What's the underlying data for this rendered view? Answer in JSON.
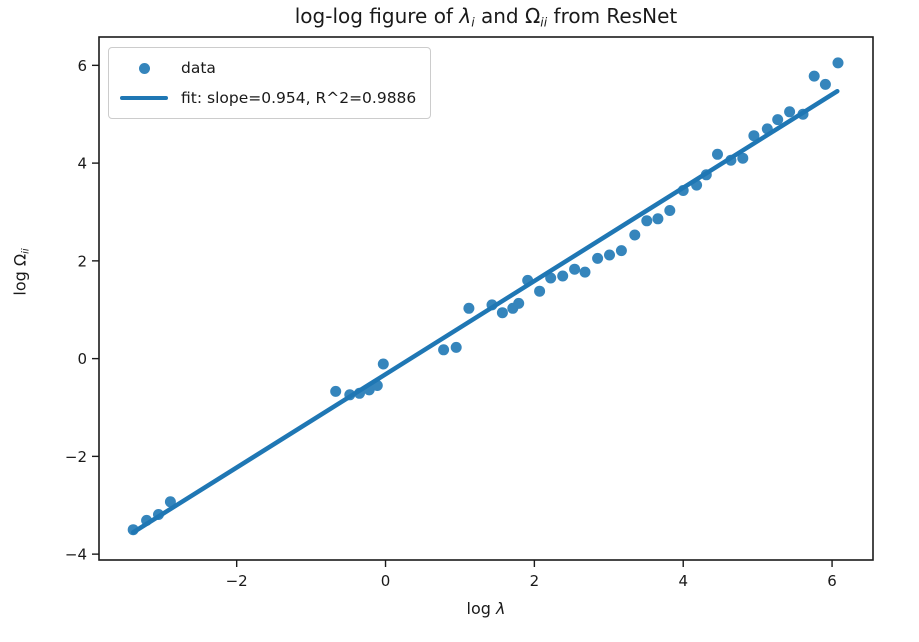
{
  "figure": {
    "title": {
      "prefix": "log-log figure of ",
      "lambda_symbol": "λ",
      "lambda_sub": "i",
      "middle": " and ",
      "omega_symbol": "Ω",
      "omega_sub": "ii",
      "suffix": " from ResNet"
    },
    "xlabel": {
      "prefix": "log ",
      "symbol": "λ"
    },
    "ylabel": {
      "prefix": "log ",
      "symbol": "Ω",
      "sub": "ii"
    },
    "legend": {
      "data_label": "data",
      "fit_label": "fit: slope=0.954, R^2=0.9886"
    }
  },
  "colors": {
    "dot": "#3585bc",
    "line": "#1f77b4",
    "axis": "#1a1a1a",
    "legend_border": "#cccccc",
    "background": "#ffffff"
  },
  "chart_data": {
    "type": "scatter",
    "title": "log-log figure of λ_i and Ω_ii from ResNet",
    "xlabel": "log λ",
    "ylabel": "log Ω_ii",
    "grid": false,
    "legend_position": "upper left",
    "xlim": [
      -3.85,
      6.55
    ],
    "ylim": [
      -4.12,
      6.58
    ],
    "xticks": [
      -2,
      0,
      2,
      4,
      6
    ],
    "yticks": [
      -4,
      -2,
      0,
      2,
      4,
      6
    ],
    "series": [
      {
        "name": "data",
        "type": "scatter",
        "points": [
          [
            -3.39,
            -3.5
          ],
          [
            -3.21,
            -3.31
          ],
          [
            -3.05,
            -3.19
          ],
          [
            -2.89,
            -2.93
          ],
          [
            -0.67,
            -0.67
          ],
          [
            -0.48,
            -0.74
          ],
          [
            -0.35,
            -0.71
          ],
          [
            -0.22,
            -0.64
          ],
          [
            -0.11,
            -0.55
          ],
          [
            -0.03,
            -0.11
          ],
          [
            0.78,
            0.18
          ],
          [
            0.95,
            0.23
          ],
          [
            1.12,
            1.03
          ],
          [
            1.43,
            1.1
          ],
          [
            1.57,
            0.94
          ],
          [
            1.71,
            1.03
          ],
          [
            1.79,
            1.13
          ],
          [
            1.91,
            1.6
          ],
          [
            2.07,
            1.38
          ],
          [
            2.22,
            1.65
          ],
          [
            2.38,
            1.69
          ],
          [
            2.54,
            1.83
          ],
          [
            2.68,
            1.77
          ],
          [
            2.85,
            2.05
          ],
          [
            3.01,
            2.12
          ],
          [
            3.17,
            2.21
          ],
          [
            3.35,
            2.53
          ],
          [
            3.51,
            2.82
          ],
          [
            3.66,
            2.86
          ],
          [
            3.82,
            3.03
          ],
          [
            4.0,
            3.44
          ],
          [
            4.18,
            3.55
          ],
          [
            4.31,
            3.76
          ],
          [
            4.46,
            4.18
          ],
          [
            4.64,
            4.06
          ],
          [
            4.8,
            4.1
          ],
          [
            4.95,
            4.56
          ],
          [
            5.13,
            4.7
          ],
          [
            5.27,
            4.89
          ],
          [
            5.43,
            5.05
          ],
          [
            5.61,
            5.0
          ],
          [
            5.76,
            5.78
          ],
          [
            5.91,
            5.61
          ],
          [
            6.08,
            6.05
          ]
        ]
      },
      {
        "name": "fit: slope=0.954, R^2=0.9886",
        "type": "line",
        "slope": 0.954,
        "intercept": -0.32,
        "r_squared": 0.9886,
        "x_start": -3.39,
        "x_end": 6.07
      }
    ]
  }
}
